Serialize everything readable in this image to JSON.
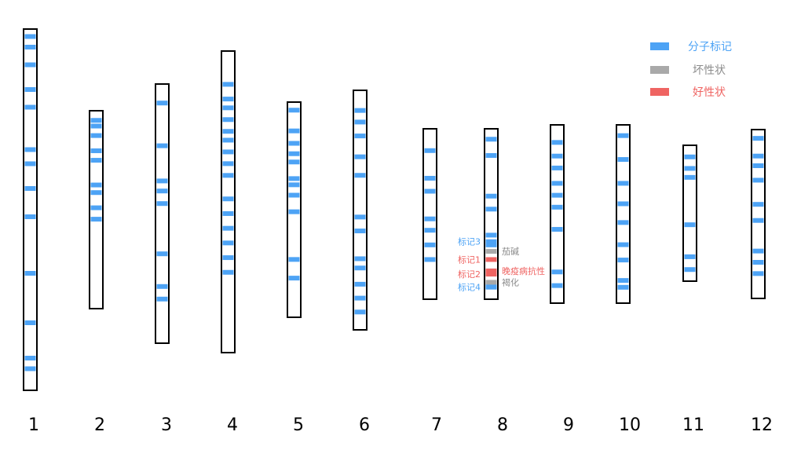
{
  "legend": [
    {
      "key": "marker",
      "label": "分子标记",
      "color": "#4da3f5"
    },
    {
      "key": "bad",
      "label": "坏性状",
      "color": "#a9a9a9"
    },
    {
      "key": "good",
      "label": "好性状",
      "color": "#ef6462"
    }
  ],
  "chromosomes": [
    {
      "label": "1",
      "markers": [
        1,
        4,
        9,
        16,
        21,
        33,
        37,
        44,
        52,
        68,
        82,
        92,
        95
      ]
    },
    {
      "label": "2",
      "markers": [
        3,
        6,
        11,
        19,
        24,
        37,
        41,
        49,
        55
      ]
    },
    {
      "label": "3",
      "markers": [
        6,
        23,
        37,
        41,
        46,
        66,
        79,
        84
      ]
    },
    {
      "label": "4",
      "markers": [
        10,
        15,
        18,
        22,
        26,
        29,
        33,
        37,
        41,
        49,
        54,
        59,
        64,
        69,
        74
      ]
    },
    {
      "label": "5",
      "markers": [
        2,
        12,
        18,
        23,
        27,
        35,
        38,
        43,
        51,
        74,
        83
      ]
    },
    {
      "label": "6",
      "markers": [
        7,
        12,
        18,
        27,
        35,
        53,
        59,
        71,
        75,
        82,
        88,
        94
      ]
    },
    {
      "label": "7",
      "markers": [
        11,
        28,
        36,
        53,
        60,
        69,
        78
      ]
    },
    {
      "label": "8",
      "markers": [
        4,
        14,
        39,
        47,
        63,
        69,
        85,
        93
      ]
    },
    {
      "label": "9",
      "markers": [
        8,
        16,
        23,
        32,
        39,
        46,
        59,
        84,
        92
      ]
    },
    {
      "label": "10",
      "markers": [
        4,
        18,
        32,
        44,
        55,
        68,
        77,
        89,
        93
      ]
    },
    {
      "label": "11",
      "markers": [
        6,
        15,
        22,
        59,
        84,
        94
      ]
    },
    {
      "label": "12",
      "markers": [
        3,
        14,
        20,
        29,
        44,
        54,
        73,
        80,
        87
      ]
    }
  ],
  "annotations": {
    "chromosome": "8",
    "markers": [
      {
        "label": "标记3",
        "kind": "marker",
        "position": 67
      },
      {
        "label": "标记1",
        "kind": "good",
        "position": 78
      },
      {
        "label": "标记2",
        "kind": "good",
        "position": 87
      },
      {
        "label": "标记4",
        "kind": "marker",
        "position": 95
      }
    ],
    "traits": [
      {
        "label": "茄碱",
        "kind": "bad",
        "position": 73
      },
      {
        "label": "晚疫病抗性",
        "kind": "good",
        "position": 85
      },
      {
        "label": "褐化",
        "kind": "bad",
        "position": 92
      }
    ]
  }
}
